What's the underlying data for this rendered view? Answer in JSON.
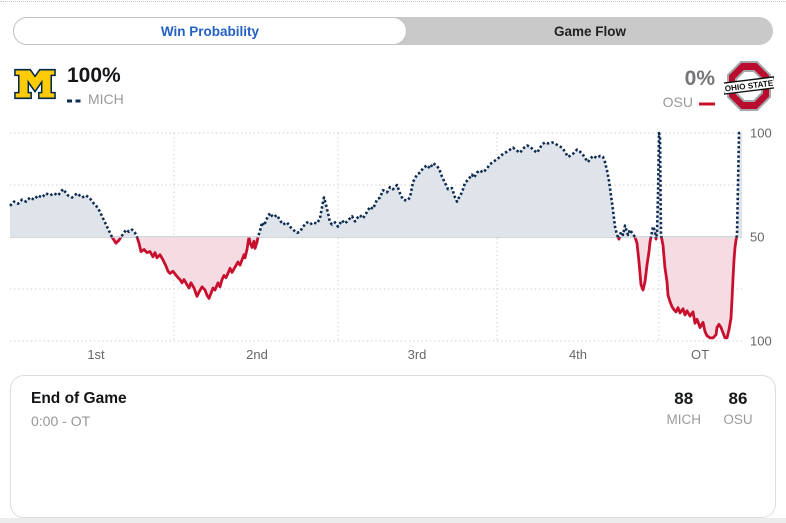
{
  "tabs": {
    "win_probability": "Win Probability",
    "game_flow": "Game Flow"
  },
  "header": {
    "mich": {
      "pct": "100%",
      "abbr": "MICH"
    },
    "osu": {
      "pct": "0%",
      "abbr": "OSU"
    },
    "osu_logo_text": "OHIO STATE"
  },
  "colors": {
    "mich_navy": "#0e2c51",
    "mich_fill": "#dfe3ea",
    "osu_red": "#c8102e",
    "osu_fill": "#f5dce3",
    "grid": "#c9c9c9",
    "midline": "#c5c8cc",
    "axis_text": "#66676a",
    "maize": "#ffcb05",
    "michigan_blue": "#00274c",
    "scarlet": "#ba0c2f",
    "active_tab_text": "#2260c4"
  },
  "chart_data": {
    "type": "line",
    "title": "Win Probability",
    "description": "Win probability over game time. Values above 50 = MICH favored (dotted navy, gray fill); below 50 = OSU favored (solid red, pink fill). Y axis: 100 (MICH) at top, 50 midline, 100 (OSU) at bottom.",
    "x_domain": [
      0,
      732
    ],
    "x_axis": {
      "ticks": [
        {
          "label": "1st",
          "center": 86
        },
        {
          "label": "2nd",
          "center": 247
        },
        {
          "label": "3rd",
          "center": 407
        },
        {
          "label": "4th",
          "center": 568
        },
        {
          "label": "OT",
          "center": 690
        }
      ],
      "quarter_boundaries": [
        164,
        328,
        487,
        649
      ]
    },
    "y_axis": {
      "ticks": [
        {
          "label": "100",
          "pct": 100
        },
        {
          "label": "50",
          "pct": 50
        },
        {
          "label": "100",
          "pct": 0
        }
      ],
      "gridlines_pct": [
        100,
        75,
        50,
        25,
        0
      ],
      "midline_pct": 50
    },
    "series": [
      {
        "name": "MICH",
        "style": "dotted",
        "final_pct": 100
      },
      {
        "name": "OSU",
        "style": "solid",
        "final_pct": 0
      }
    ],
    "points_mich_pct": [
      [
        0,
        65
      ],
      [
        4,
        67
      ],
      [
        8,
        66
      ],
      [
        12,
        68
      ],
      [
        16,
        67
      ],
      [
        20,
        69
      ],
      [
        24,
        68
      ],
      [
        28,
        70
      ],
      [
        32,
        69
      ],
      [
        36,
        71
      ],
      [
        40,
        70
      ],
      [
        44,
        71
      ],
      [
        48,
        70
      ],
      [
        53,
        73
      ],
      [
        58,
        70
      ],
      [
        62,
        69
      ],
      [
        67,
        71
      ],
      [
        72,
        69
      ],
      [
        76,
        70
      ],
      [
        80,
        68.5
      ],
      [
        84,
        66
      ],
      [
        88,
        64
      ],
      [
        91,
        61
      ],
      [
        94,
        58
      ],
      [
        97,
        55
      ],
      [
        100,
        52
      ],
      [
        102,
        50
      ],
      [
        104,
        48.5
      ],
      [
        106,
        47
      ],
      [
        109,
        48.5
      ],
      [
        111,
        50
      ],
      [
        114,
        52
      ],
      [
        116,
        53.5
      ],
      [
        119,
        52.5
      ],
      [
        122,
        53.5
      ],
      [
        125,
        52
      ],
      [
        127,
        50
      ],
      [
        129,
        47
      ],
      [
        131,
        43
      ],
      [
        134,
        44
      ],
      [
        137,
        42.5
      ],
      [
        140,
        43
      ],
      [
        143,
        40.5
      ],
      [
        145,
        42.5
      ],
      [
        147,
        40
      ],
      [
        150,
        41.5
      ],
      [
        153,
        39
      ],
      [
        156,
        36
      ],
      [
        158,
        33.5
      ],
      [
        160,
        32.5
      ],
      [
        163,
        33.5
      ],
      [
        167,
        31
      ],
      [
        170,
        29.5
      ],
      [
        172,
        28
      ],
      [
        174,
        29.5
      ],
      [
        177,
        27
      ],
      [
        179,
        25.5
      ],
      [
        181,
        28
      ],
      [
        184,
        25.5
      ],
      [
        187,
        21.5
      ],
      [
        189,
        23.5
      ],
      [
        192,
        26
      ],
      [
        195,
        24.5
      ],
      [
        197,
        22
      ],
      [
        199,
        20.5
      ],
      [
        201,
        23
      ],
      [
        203,
        25.5
      ],
      [
        205,
        24.5
      ],
      [
        208,
        28
      ],
      [
        210,
        26
      ],
      [
        212,
        29.5
      ],
      [
        214,
        31.5
      ],
      [
        216,
        30.5
      ],
      [
        218,
        32.5
      ],
      [
        220,
        35
      ],
      [
        222,
        33
      ],
      [
        225,
        35.5
      ],
      [
        228,
        38
      ],
      [
        230,
        36.5
      ],
      [
        232,
        39
      ],
      [
        234,
        41.5
      ],
      [
        235,
        40
      ],
      [
        237,
        44
      ],
      [
        238,
        47
      ],
      [
        239,
        50
      ],
      [
        240,
        47.5
      ],
      [
        242,
        45
      ],
      [
        244,
        48
      ],
      [
        245,
        44.5
      ],
      [
        247,
        47.5
      ],
      [
        248,
        50
      ],
      [
        250,
        53
      ],
      [
        252,
        57
      ],
      [
        254,
        55.5
      ],
      [
        257,
        59
      ],
      [
        260,
        61.5
      ],
      [
        263,
        59.5
      ],
      [
        267,
        60.5
      ],
      [
        270,
        58
      ],
      [
        273,
        56
      ],
      [
        277,
        57
      ],
      [
        280,
        55
      ],
      [
        283,
        53.5
      ],
      [
        287,
        52
      ],
      [
        290,
        52.5
      ],
      [
        293,
        55
      ],
      [
        297,
        57
      ],
      [
        300,
        56
      ],
      [
        303,
        57
      ],
      [
        307,
        56.5
      ],
      [
        310,
        59
      ],
      [
        313,
        67
      ],
      [
        314,
        69
      ],
      [
        316,
        65.5
      ],
      [
        318,
        61.5
      ],
      [
        320,
        57
      ],
      [
        322,
        56
      ],
      [
        325,
        57
      ],
      [
        328,
        55
      ],
      [
        332,
        58
      ],
      [
        335,
        56.5
      ],
      [
        338,
        58
      ],
      [
        342,
        60
      ],
      [
        345,
        57.5
      ],
      [
        347,
        59
      ],
      [
        350,
        60.5
      ],
      [
        353,
        59
      ],
      [
        357,
        62
      ],
      [
        360,
        64.5
      ],
      [
        363,
        63.5
      ],
      [
        367,
        68
      ],
      [
        370,
        69
      ],
      [
        373,
        72.5
      ],
      [
        377,
        71.5
      ],
      [
        380,
        74
      ],
      [
        383,
        73
      ],
      [
        387,
        75
      ],
      [
        390,
        71
      ],
      [
        393,
        68
      ],
      [
        397,
        67.5
      ],
      [
        400,
        69
      ],
      [
        403,
        76.5
      ],
      [
        407,
        80
      ],
      [
        410,
        81
      ],
      [
        413,
        83
      ],
      [
        417,
        84.5
      ],
      [
        420,
        83
      ],
      [
        423,
        85.5
      ],
      [
        426,
        84.5
      ],
      [
        429,
        83
      ],
      [
        432,
        79
      ],
      [
        435,
        76
      ],
      [
        438,
        73
      ],
      [
        442,
        73.5
      ],
      [
        445,
        69
      ],
      [
        447,
        67
      ],
      [
        449,
        69
      ],
      [
        452,
        71.5
      ],
      [
        455,
        76
      ],
      [
        458,
        77.5
      ],
      [
        462,
        80
      ],
      [
        464,
        78.5
      ],
      [
        467,
        81
      ],
      [
        470,
        82
      ],
      [
        473,
        81
      ],
      [
        477,
        83
      ],
      [
        480,
        85
      ],
      [
        483,
        86
      ],
      [
        487,
        87.5
      ],
      [
        490,
        88.5
      ],
      [
        493,
        90
      ],
      [
        497,
        91
      ],
      [
        500,
        92
      ],
      [
        503,
        93
      ],
      [
        507,
        91.5
      ],
      [
        510,
        90.5
      ],
      [
        513,
        92.5
      ],
      [
        517,
        94
      ],
      [
        520,
        93.5
      ],
      [
        523,
        92
      ],
      [
        527,
        90.5
      ],
      [
        529,
        92
      ],
      [
        532,
        94.5
      ],
      [
        535,
        95.5
      ],
      [
        538,
        95
      ],
      [
        542,
        95.5
      ],
      [
        545,
        95
      ],
      [
        548,
        94
      ],
      [
        552,
        93
      ],
      [
        555,
        91
      ],
      [
        558,
        88.5
      ],
      [
        562,
        89.5
      ],
      [
        564,
        90.5
      ],
      [
        567,
        92
      ],
      [
        570,
        91
      ],
      [
        573,
        89.5
      ],
      [
        575,
        88
      ],
      [
        578,
        86
      ],
      [
        580,
        87.5
      ],
      [
        583,
        89
      ],
      [
        587,
        88
      ],
      [
        590,
        89
      ],
      [
        593,
        88.5
      ],
      [
        595,
        86
      ],
      [
        597,
        82
      ],
      [
        599,
        77
      ],
      [
        601,
        70
      ],
      [
        603,
        63
      ],
      [
        605,
        55
      ],
      [
        607,
        51
      ],
      [
        609,
        49
      ],
      [
        611,
        52.5
      ],
      [
        613,
        51
      ],
      [
        615,
        55.5
      ],
      [
        618,
        51
      ],
      [
        620,
        53.5
      ],
      [
        622,
        52
      ],
      [
        625,
        50
      ],
      [
        627,
        47
      ],
      [
        629,
        38
      ],
      [
        631,
        27
      ],
      [
        633,
        24.5
      ],
      [
        635,
        28.5
      ],
      [
        637,
        36.5
      ],
      [
        639,
        43
      ],
      [
        640,
        47.5
      ],
      [
        642,
        52.5
      ],
      [
        643,
        55
      ],
      [
        645,
        53
      ],
      [
        646,
        49
      ],
      [
        647,
        52
      ],
      [
        648,
        70
      ],
      [
        649,
        100
      ],
      [
        650,
        98
      ],
      [
        651,
        51
      ],
      [
        653,
        46
      ],
      [
        655,
        35
      ],
      [
        657,
        28.5
      ],
      [
        658,
        22
      ],
      [
        660,
        19
      ],
      [
        662,
        16.5
      ],
      [
        664,
        15
      ],
      [
        666,
        14
      ],
      [
        668,
        16
      ],
      [
        670,
        13.5
      ],
      [
        673,
        15.5
      ],
      [
        675,
        12.5
      ],
      [
        677,
        14.5
      ],
      [
        680,
        12
      ],
      [
        683,
        14
      ],
      [
        685,
        8.5
      ],
      [
        687,
        10.5
      ],
      [
        690,
        6.5
      ],
      [
        693,
        9
      ],
      [
        695,
        4.5
      ],
      [
        697,
        2.5
      ],
      [
        700,
        1.5
      ],
      [
        703,
        1.5
      ],
      [
        706,
        3
      ],
      [
        707,
        6.5
      ],
      [
        709,
        8
      ],
      [
        711,
        6.5
      ],
      [
        713,
        4
      ],
      [
        715,
        1.5
      ],
      [
        717,
        1.5
      ],
      [
        719,
        5.5
      ],
      [
        721,
        11
      ],
      [
        722,
        20
      ],
      [
        723,
        30
      ],
      [
        724,
        39
      ],
      [
        725,
        45
      ],
      [
        726,
        48.5
      ],
      [
        727,
        51
      ],
      [
        728,
        75
      ],
      [
        729,
        100
      ],
      [
        732,
        100
      ]
    ]
  },
  "footer_card": {
    "title": "End of Game",
    "subtitle": "0:00 - OT",
    "scores": [
      {
        "value": "88",
        "team": "MICH"
      },
      {
        "value": "86",
        "team": "OSU"
      }
    ]
  }
}
